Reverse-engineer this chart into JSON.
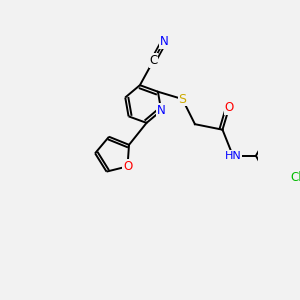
{
  "bg_color": "#f2f2f2",
  "atom_colors": {
    "N": "#0000ff",
    "O": "#ff0000",
    "S": "#ccaa00",
    "Cl": "#00bb00",
    "C": "#000000",
    "H": "#333333"
  },
  "bond_color": "#000000",
  "bond_lw": 1.4,
  "figsize": [
    3.0,
    3.0
  ],
  "dpi": 100
}
